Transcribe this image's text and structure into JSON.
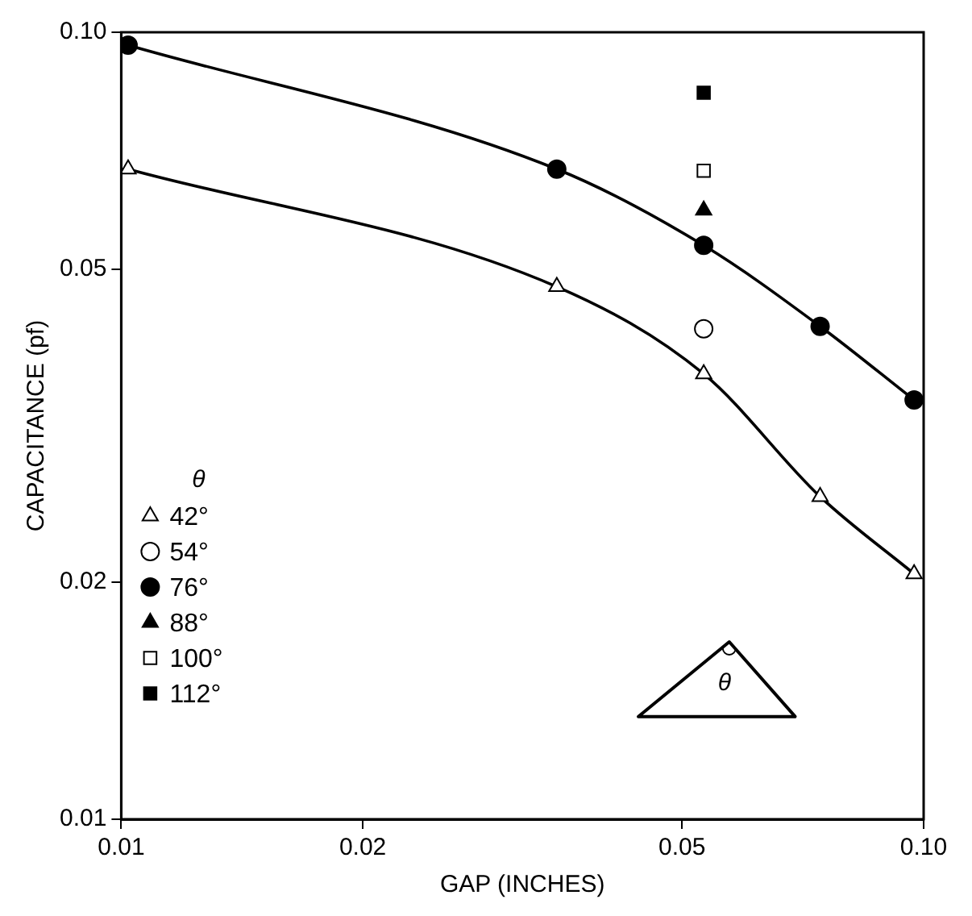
{
  "chart_data": {
    "type": "line",
    "xlabel": "GAP (INCHES)",
    "ylabel": "CAPACITANCE (pf)",
    "legend_title": "θ",
    "log": "xy",
    "grid": false,
    "legend": "bottom left",
    "xlim": [
      0.01,
      0.1
    ],
    "ylim": [
      0.01,
      0.1
    ],
    "xticks": [
      0.01,
      0.02,
      0.05,
      {
        "value": 0.1,
        "label": "0.10"
      }
    ],
    "yticks": [
      0.01,
      0.02,
      0.05,
      {
        "value": 0.1,
        "label": "0.10"
      }
    ],
    "annotations": [
      "θ"
    ],
    "series": [
      {
        "name": "42°",
        "type": "line",
        "marker": "triangle",
        "color": "#ffffff",
        "x": [
          0.0102,
          0.0349,
          0.0532,
          0.0743,
          0.0973
        ],
        "values": [
          0.067,
          0.0475,
          0.0368,
          0.0257,
          0.0205
        ]
      },
      {
        "name": "54°",
        "type": "scatter",
        "marker": "circle",
        "color": "#ffffff",
        "x": [
          0.0532
        ],
        "values": [
          0.042
        ]
      },
      {
        "name": "76°",
        "type": "line",
        "marker": "circle",
        "color": "#000000",
        "x": [
          0.0102,
          0.0349,
          0.0532,
          0.0743,
          0.0973
        ],
        "values": [
          0.0963,
          0.067,
          0.0536,
          0.0423,
          0.0341
        ]
      },
      {
        "name": "88°",
        "type": "scatter",
        "marker": "triangle",
        "color": "#000000",
        "x": [
          0.0532
        ],
        "values": [
          0.0594
        ]
      },
      {
        "name": "100°",
        "type": "scatter",
        "marker": "square",
        "color": "#ffffff",
        "x": [
          0.0532
        ],
        "values": [
          0.0667
        ]
      },
      {
        "name": "112°",
        "type": "scatter",
        "marker": "square",
        "color": "#000000",
        "x": [
          0.0532
        ],
        "values": [
          0.0838
        ]
      }
    ]
  }
}
